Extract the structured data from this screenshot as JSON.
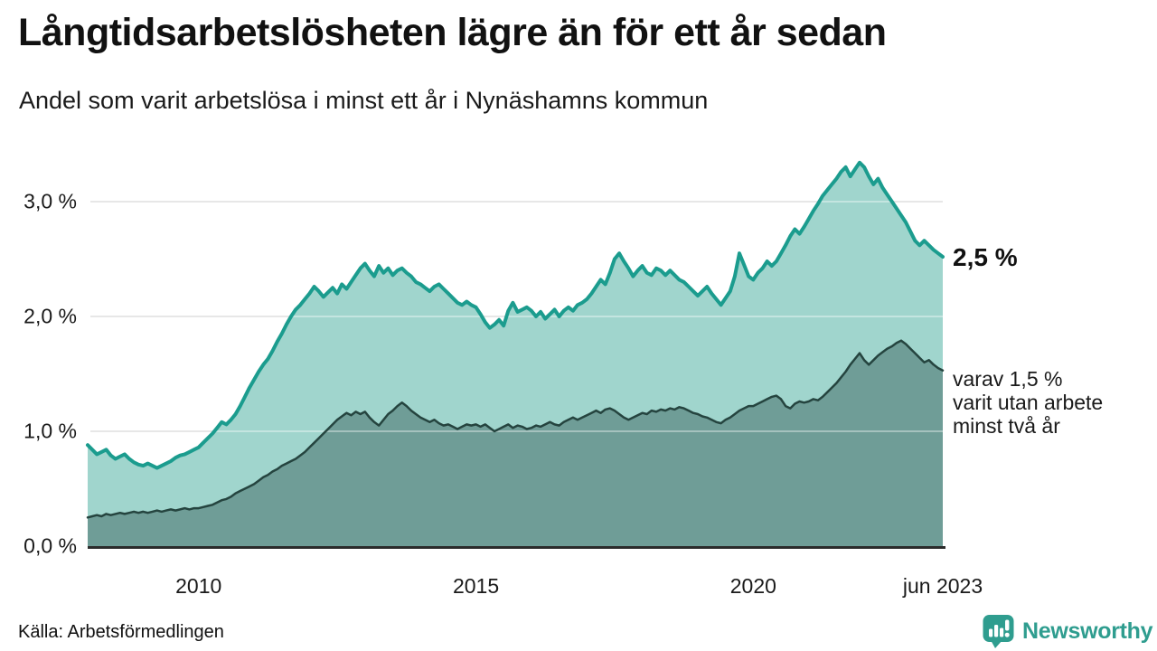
{
  "header": {
    "title": "Långtidsarbetslösheten lägre än för ett år sedan",
    "subtitle": "Andel som varit arbetslösa i minst ett år i Nynäshamns kommun"
  },
  "chart_data": {
    "type": "area",
    "title": "Långtidsarbetslösheten lägre än för ett år sedan",
    "subtitle": "Andel som varit arbetslösa i minst ett år i Nynäshamns kommun",
    "x_start": "2008-01",
    "x_end": "2023-06",
    "frequency": "monthly",
    "ylim": [
      0,
      3.4
    ],
    "grid": true,
    "legend": "none",
    "yticks": [
      {
        "value": 0,
        "label": "0,0 %"
      },
      {
        "value": 1,
        "label": "1,0 %"
      },
      {
        "value": 2,
        "label": "2,0 %"
      },
      {
        "value": 3,
        "label": "3,0 %"
      }
    ],
    "xticks": [
      {
        "month_index": 24,
        "label": "2010"
      },
      {
        "month_index": 84,
        "label": "2015"
      },
      {
        "month_index": 144,
        "label": "2020"
      },
      {
        "month_index": 185,
        "label": "jun 2023"
      }
    ],
    "series": [
      {
        "name": "arbetslösa minst ett år",
        "line_color": "#1b9c8e",
        "fill_color": "#a0d5cd",
        "end_value": 2.5,
        "values": [
          0.88,
          0.84,
          0.8,
          0.82,
          0.84,
          0.79,
          0.76,
          0.78,
          0.8,
          0.76,
          0.73,
          0.71,
          0.7,
          0.72,
          0.7,
          0.68,
          0.7,
          0.72,
          0.74,
          0.77,
          0.79,
          0.8,
          0.82,
          0.84,
          0.86,
          0.9,
          0.94,
          0.98,
          1.03,
          1.08,
          1.06,
          1.1,
          1.15,
          1.22,
          1.3,
          1.38,
          1.45,
          1.52,
          1.58,
          1.63,
          1.7,
          1.78,
          1.85,
          1.93,
          2.0,
          2.06,
          2.1,
          2.15,
          2.2,
          2.26,
          2.22,
          2.17,
          2.21,
          2.25,
          2.2,
          2.28,
          2.24,
          2.3,
          2.36,
          2.42,
          2.46,
          2.4,
          2.35,
          2.44,
          2.38,
          2.42,
          2.36,
          2.4,
          2.42,
          2.38,
          2.35,
          2.3,
          2.28,
          2.25,
          2.22,
          2.26,
          2.28,
          2.24,
          2.2,
          2.16,
          2.12,
          2.1,
          2.13,
          2.1,
          2.08,
          2.02,
          1.95,
          1.9,
          1.93,
          1.97,
          1.92,
          2.05,
          2.12,
          2.04,
          2.06,
          2.08,
          2.05,
          2.0,
          2.04,
          1.98,
          2.02,
          2.06,
          2.0,
          2.05,
          2.08,
          2.05,
          2.1,
          2.12,
          2.15,
          2.2,
          2.26,
          2.32,
          2.28,
          2.38,
          2.5,
          2.55,
          2.48,
          2.42,
          2.35,
          2.4,
          2.44,
          2.38,
          2.36,
          2.42,
          2.4,
          2.36,
          2.4,
          2.36,
          2.32,
          2.3,
          2.26,
          2.22,
          2.18,
          2.22,
          2.26,
          2.2,
          2.15,
          2.1,
          2.16,
          2.22,
          2.35,
          2.55,
          2.45,
          2.35,
          2.32,
          2.38,
          2.42,
          2.48,
          2.44,
          2.48,
          2.55,
          2.62,
          2.7,
          2.76,
          2.72,
          2.78,
          2.85,
          2.92,
          2.98,
          3.05,
          3.1,
          3.15,
          3.2,
          3.26,
          3.3,
          3.22,
          3.28,
          3.34,
          3.3,
          3.22,
          3.15,
          3.2,
          3.12,
          3.06,
          3.0,
          2.94,
          2.88,
          2.82,
          2.74,
          2.66,
          2.62,
          2.66,
          2.62,
          2.58,
          2.55,
          2.52
        ]
      },
      {
        "name": "varav utan arbete minst två år",
        "line_color": "#25443f",
        "fill_color": "#6f9d97",
        "end_value": 1.5,
        "values": [
          0.25,
          0.26,
          0.27,
          0.26,
          0.28,
          0.27,
          0.28,
          0.29,
          0.28,
          0.29,
          0.3,
          0.29,
          0.3,
          0.29,
          0.3,
          0.31,
          0.3,
          0.31,
          0.32,
          0.31,
          0.32,
          0.33,
          0.32,
          0.33,
          0.33,
          0.34,
          0.35,
          0.36,
          0.38,
          0.4,
          0.41,
          0.43,
          0.46,
          0.48,
          0.5,
          0.52,
          0.54,
          0.57,
          0.6,
          0.62,
          0.65,
          0.67,
          0.7,
          0.72,
          0.74,
          0.76,
          0.79,
          0.82,
          0.86,
          0.9,
          0.94,
          0.98,
          1.02,
          1.06,
          1.1,
          1.13,
          1.16,
          1.14,
          1.17,
          1.15,
          1.17,
          1.12,
          1.08,
          1.05,
          1.1,
          1.15,
          1.18,
          1.22,
          1.25,
          1.22,
          1.18,
          1.15,
          1.12,
          1.1,
          1.08,
          1.1,
          1.07,
          1.05,
          1.06,
          1.04,
          1.02,
          1.04,
          1.06,
          1.05,
          1.06,
          1.04,
          1.06,
          1.03,
          1.0,
          1.02,
          1.04,
          1.06,
          1.03,
          1.05,
          1.04,
          1.02,
          1.03,
          1.05,
          1.04,
          1.06,
          1.08,
          1.06,
          1.05,
          1.08,
          1.1,
          1.12,
          1.1,
          1.12,
          1.14,
          1.16,
          1.18,
          1.16,
          1.19,
          1.2,
          1.18,
          1.15,
          1.12,
          1.1,
          1.12,
          1.14,
          1.16,
          1.15,
          1.18,
          1.17,
          1.19,
          1.18,
          1.2,
          1.19,
          1.21,
          1.2,
          1.18,
          1.16,
          1.15,
          1.13,
          1.12,
          1.1,
          1.08,
          1.07,
          1.1,
          1.12,
          1.15,
          1.18,
          1.2,
          1.22,
          1.22,
          1.24,
          1.26,
          1.28,
          1.3,
          1.31,
          1.28,
          1.22,
          1.2,
          1.24,
          1.26,
          1.25,
          1.26,
          1.28,
          1.27,
          1.3,
          1.34,
          1.38,
          1.42,
          1.47,
          1.52,
          1.58,
          1.63,
          1.68,
          1.62,
          1.58,
          1.62,
          1.66,
          1.69,
          1.72,
          1.74,
          1.77,
          1.79,
          1.76,
          1.72,
          1.68,
          1.64,
          1.6,
          1.62,
          1.58,
          1.55,
          1.53
        ]
      }
    ],
    "annotations": {
      "end_label_top": "2,5 %",
      "end_label_bottom": "varav 1,5 %\nvarit utan arbete\nminst två år"
    },
    "colors": {
      "grid": "#d8d8d8",
      "axis": "#2b2b2b"
    }
  },
  "source": {
    "label": "Källa: Arbetsförmedlingen"
  },
  "logo": {
    "text": "Newsworthy",
    "color": "#2f9d8f",
    "icon": "bar-chart-speech-bubble"
  }
}
